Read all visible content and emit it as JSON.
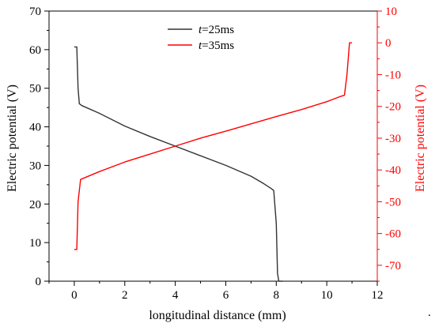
{
  "chart_data": {
    "type": "line",
    "title": "",
    "xlabel": "longitudinal distance (mm)",
    "ylabel_left": "Electric potential (V)",
    "ylabel_right": "Electric potential (V)",
    "xlim": [
      -1,
      12
    ],
    "ylim_left": [
      0,
      70
    ],
    "ylim_right": [
      -75,
      10
    ],
    "x_ticks": [
      0,
      2,
      4,
      6,
      8,
      10,
      12
    ],
    "y_left_ticks": [
      0,
      10,
      20,
      30,
      40,
      50,
      60,
      70
    ],
    "y_right_ticks": [
      -70,
      -60,
      -50,
      -40,
      -30,
      -20,
      -10,
      0,
      10
    ],
    "grid": false,
    "legend_position": "top-center",
    "series": [
      {
        "name_prefix": "t",
        "name_suffix": "=25ms",
        "axis": "left",
        "color": "#333333",
        "x": [
          0.0,
          0.1,
          0.15,
          0.2,
          0.3,
          1,
          2,
          3,
          4,
          5,
          6,
          7,
          7.5,
          7.8,
          7.9,
          8.0,
          8.05,
          8.1,
          8.25
        ],
        "y": [
          60.7,
          60.7,
          50,
          46,
          45.5,
          43.5,
          40.2,
          37.5,
          35.0,
          32.5,
          30.0,
          27.2,
          25.3,
          24.0,
          23.5,
          15,
          2,
          0,
          0
        ]
      },
      {
        "name_prefix": "t",
        "name_suffix": "=35ms",
        "axis": "right",
        "color": "#ff0000",
        "x": [
          0.0,
          0.1,
          0.15,
          0.25,
          1,
          2,
          3,
          4,
          5,
          6,
          7,
          8,
          9,
          10,
          10.5,
          10.7,
          10.8,
          10.9,
          11.0
        ],
        "y": [
          -65,
          -65,
          -50,
          -43,
          -40.5,
          -37.5,
          -35,
          -32.5,
          -30,
          -27.8,
          -25.5,
          -23.2,
          -21,
          -18.5,
          -17,
          -16.5,
          -10,
          0,
          0
        ]
      }
    ]
  },
  "stray_mark": "."
}
